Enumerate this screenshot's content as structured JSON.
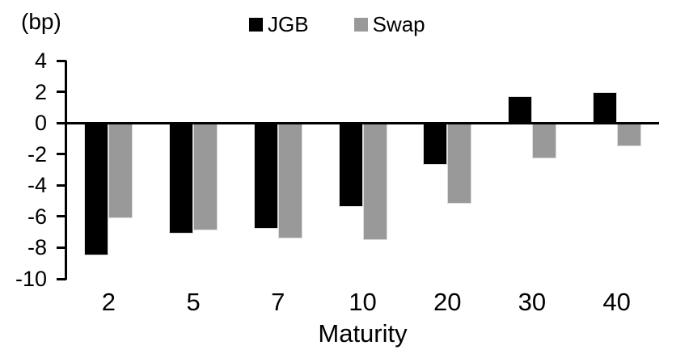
{
  "chart_data": {
    "type": "bar",
    "title": "",
    "unit_label": "(bp)",
    "xlabel": "Maturity",
    "ylabel": "",
    "categories": [
      "2",
      "5",
      "7",
      "10",
      "20",
      "30",
      "40"
    ],
    "series": [
      {
        "name": "JGB",
        "color": "#000000",
        "values": [
          -8.5,
          -7.1,
          -6.8,
          -5.4,
          -2.7,
          1.7,
          2.0
        ]
      },
      {
        "name": "Swap",
        "color": "#999999",
        "values": [
          -6.1,
          -6.9,
          -7.4,
          -7.5,
          -5.2,
          -2.3,
          -1.5
        ]
      }
    ],
    "y_ticks": [
      4,
      2,
      0,
      -2,
      -4,
      -6,
      -8,
      -10
    ],
    "ylim": [
      -10,
      4
    ],
    "grid": false,
    "legend_position": "top",
    "axis_color": "#000000",
    "background_color": "#ffffff"
  }
}
